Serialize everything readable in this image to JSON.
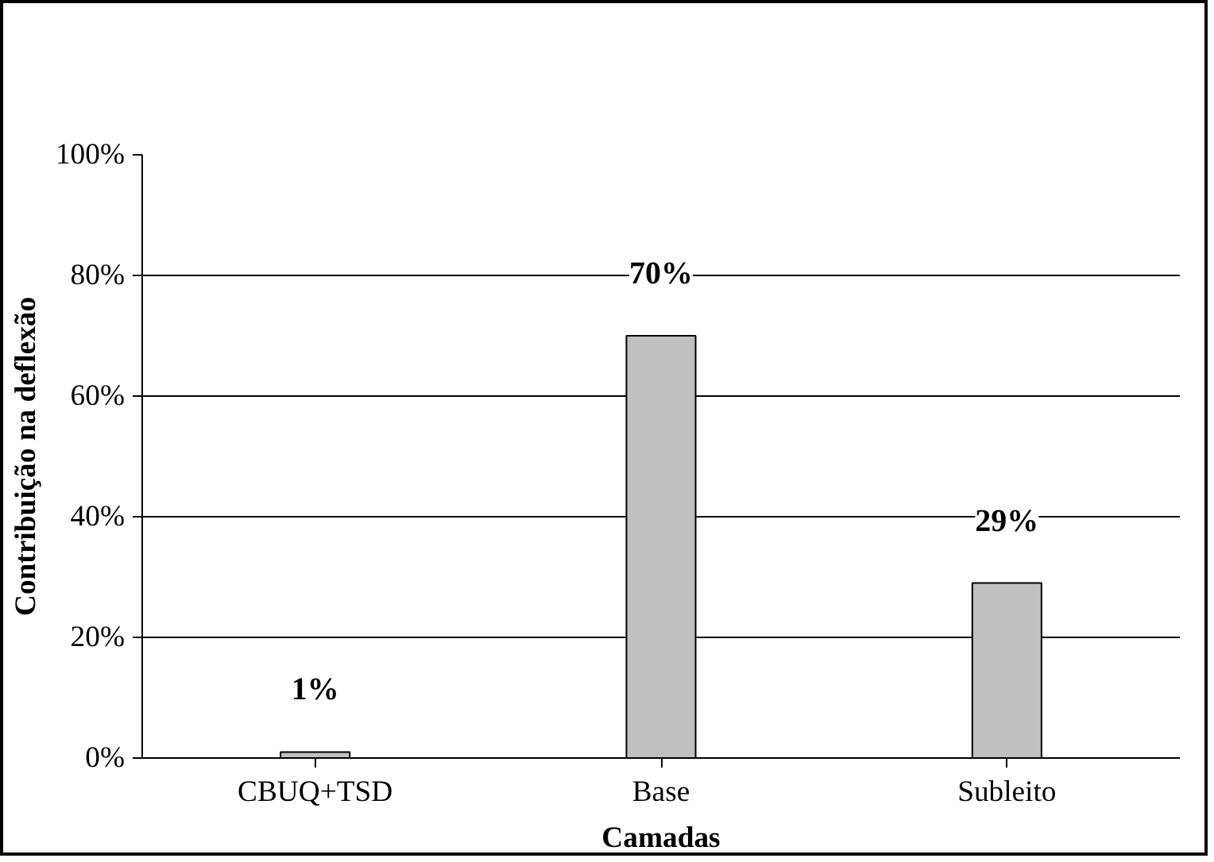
{
  "chart_data": {
    "type": "bar",
    "xlabel": "Camadas",
    "ylabel": "Contribuição na deflexão",
    "categories": [
      "CBUQ+TSD",
      "Base",
      "Subleito"
    ],
    "values": [
      1,
      70,
      29
    ],
    "value_labels": [
      "1%",
      "70%",
      "29%"
    ],
    "color": "#c0c0c0",
    "ylim": [
      0,
      100
    ],
    "yticks": [
      {
        "value": 0,
        "label": "0%"
      },
      {
        "value": 20,
        "label": "20%"
      },
      {
        "value": 40,
        "label": "40%"
      },
      {
        "value": 60,
        "label": "60%"
      },
      {
        "value": 80,
        "label": "80%"
      },
      {
        "value": 100,
        "label": "100%"
      }
    ],
    "grid": "y"
  }
}
